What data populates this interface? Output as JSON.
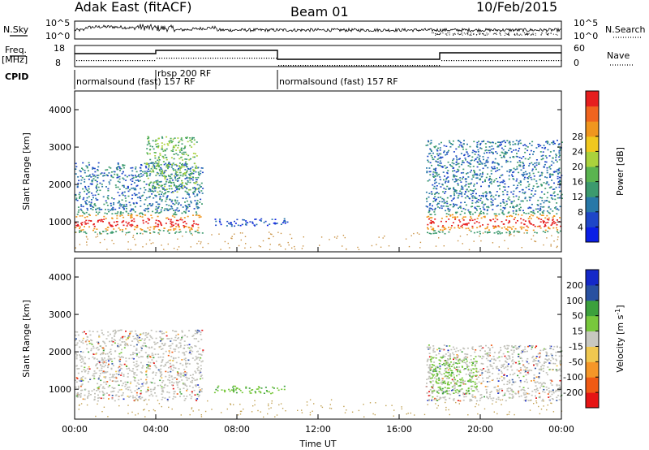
{
  "header": {
    "radar": "Adak East (fitACF)",
    "beam": "Beam 01",
    "date": "10/Feb/2015"
  },
  "top_panels": {
    "noise": {
      "left_label": "N.Sky",
      "right_label": "N.Search",
      "left_ticks": [
        "10^5",
        "10^0"
      ],
      "right_ticks": [
        "10^5",
        "10^0"
      ]
    },
    "freq": {
      "left_label": "Freq.",
      "left_unit": "[MHz]",
      "right_label": "Nave",
      "left_ticks": [
        "18",
        "8"
      ],
      "right_ticks": [
        "60",
        "0"
      ]
    },
    "cpid": {
      "label": "CPID",
      "segments": [
        {
          "text": "normalsound (fast) 157 RF",
          "start_hour": 0,
          "end_hour": 4
        },
        {
          "text": "rbsp 200 RF",
          "start_hour": 4,
          "end_hour": 10
        },
        {
          "text": "normalsound (fast) 157 RF",
          "start_hour": 10,
          "end_hour": 24
        }
      ]
    }
  },
  "chart_data": [
    {
      "type": "heatmap",
      "name": "power",
      "ylabel": "Slant Range [km]",
      "x_range_hours": [
        0,
        24
      ],
      "ylim": [
        200,
        4500
      ],
      "yticks": [
        1000,
        2000,
        3000,
        4000
      ],
      "colorbar": {
        "label": "Power [dB]",
        "ticks": [
          "4",
          "8",
          "12",
          "16",
          "20",
          "24",
          "28"
        ],
        "colors": [
          "#0a1ee6",
          "#1e46c8",
          "#2878a8",
          "#3c9a6e",
          "#5ab450",
          "#aad23c",
          "#f0c81e",
          "#f0961e",
          "#f0641e",
          "#e61e1e"
        ]
      },
      "regions": [
        {
          "x": [
            0.0,
            6.3
          ],
          "r": [
            700,
            1300
          ],
          "level": 7,
          "note": "strong band near 1000 km"
        },
        {
          "x": [
            0.0,
            6.3
          ],
          "r": [
            1300,
            2600
          ],
          "level": 2
        },
        {
          "x": [
            3.5,
            6.0
          ],
          "r": [
            1800,
            3300
          ],
          "level": 4
        },
        {
          "x": [
            6.8,
            10.5
          ],
          "r": [
            900,
            1100
          ],
          "level": 1
        },
        {
          "x": [
            17.3,
            24.0
          ],
          "r": [
            700,
            1300
          ],
          "level": 7
        },
        {
          "x": [
            17.3,
            24.0
          ],
          "r": [
            1300,
            3200
          ],
          "level": 2
        }
      ]
    },
    {
      "type": "heatmap",
      "name": "velocity",
      "ylabel": "Slant Range [km]",
      "xlabel": "Time UT",
      "x_range_hours": [
        0,
        24
      ],
      "ylim": [
        200,
        4500
      ],
      "yticks": [
        1000,
        2000,
        3000,
        4000
      ],
      "xticks": [
        "00:00",
        "04:00",
        "08:00",
        "12:00",
        "16:00",
        "20:00",
        "00:00"
      ],
      "colorbar": {
        "label": "Velocity [m s",
        "label_sup": "-1",
        "label_close": "]",
        "ticks": [
          "-200",
          "-100",
          "-50",
          "-15",
          "15",
          "50",
          "100",
          "200"
        ],
        "colors": [
          "#e61414",
          "#f05a14",
          "#f59628",
          "#f0c850",
          "#c8c8c0",
          "#78c83c",
          "#3ca03c",
          "#2850a0",
          "#1428c8"
        ]
      },
      "regions": [
        {
          "x": [
            0.0,
            6.3
          ],
          "r": [
            700,
            2600
          ],
          "class": "ground_scatter_grey"
        },
        {
          "x": [
            6.8,
            10.5
          ],
          "r": [
            900,
            1100
          ],
          "class": "green"
        },
        {
          "x": [
            17.3,
            24.0
          ],
          "r": [
            700,
            2200
          ],
          "class": "ground_scatter_grey"
        },
        {
          "x": [
            17.5,
            19.8
          ],
          "r": [
            900,
            1900
          ],
          "class": "green"
        }
      ]
    }
  ],
  "colors": {
    "ground_scatter": "#c0c0b8"
  }
}
